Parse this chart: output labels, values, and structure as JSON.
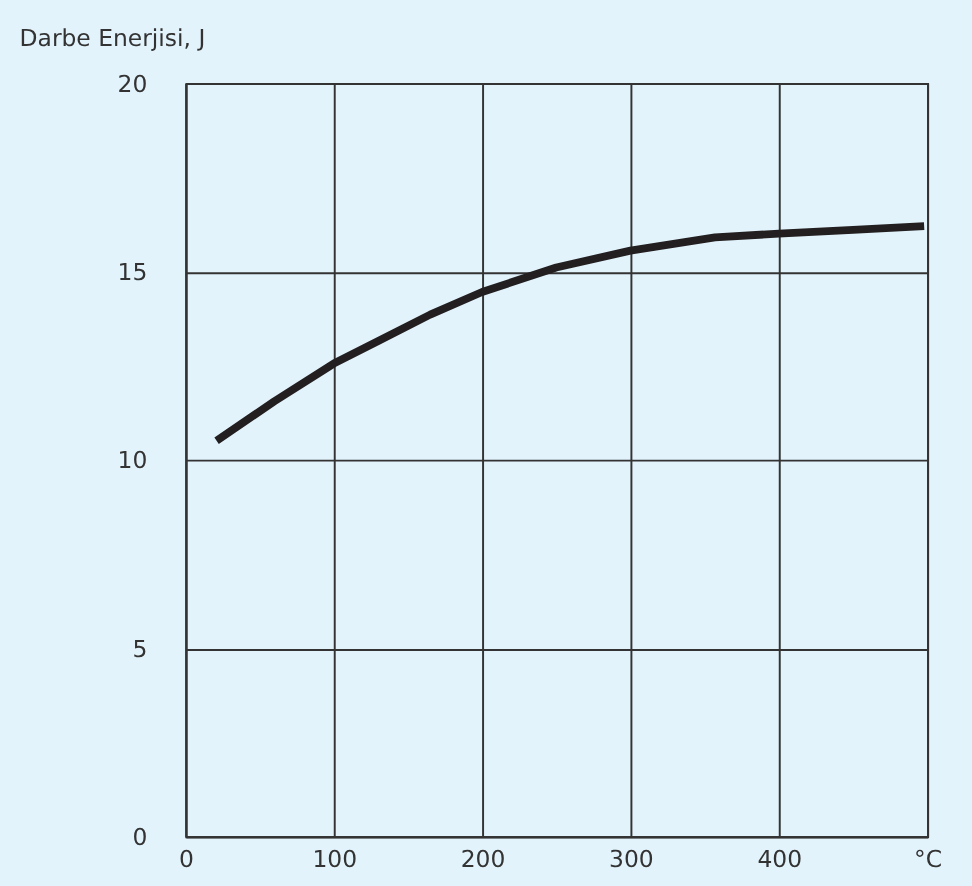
{
  "chart_data": {
    "type": "line",
    "ylabel": "Darbe Enerjisi, J",
    "x": [
      21,
      60,
      100,
      130,
      165,
      200,
      250,
      300,
      357,
      400,
      450,
      498
    ],
    "series": [
      {
        "color": "#231f20",
        "values": [
          10.5,
          11.55,
          12.55,
          13.15,
          13.85,
          14.45,
          15.1,
          15.55,
          15.9,
          16.0,
          16.1,
          16.2
        ]
      }
    ],
    "xlim": [
      0,
      500
    ],
    "xticks": [
      0,
      100,
      200,
      300,
      400,
      {
        "value": 500,
        "label": "°C"
      }
    ],
    "ylim": [
      0,
      20
    ],
    "yticks": [
      0,
      5,
      10,
      15,
      20
    ],
    "grid": true,
    "legend": false,
    "marker": "none",
    "line_style": "solid"
  }
}
